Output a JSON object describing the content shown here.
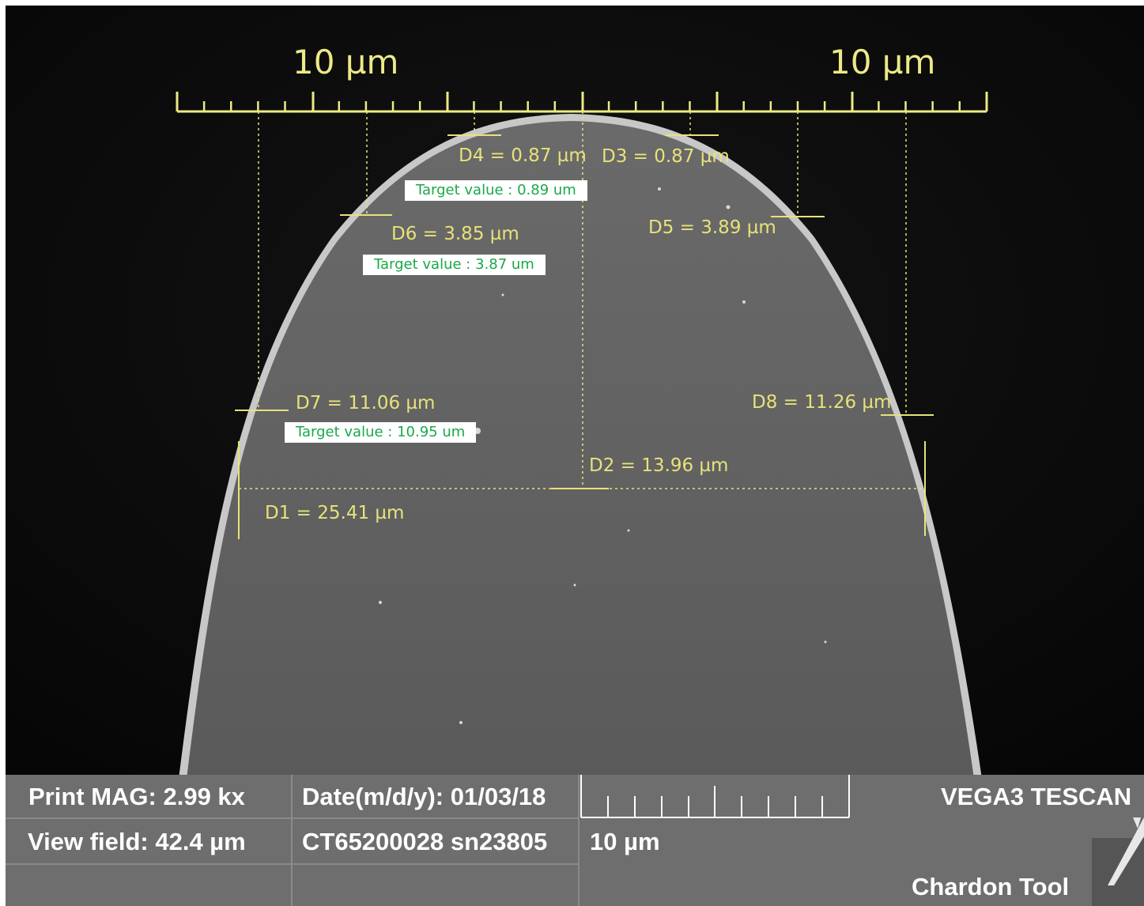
{
  "scale_bar_top": {
    "label_left": "10 µm",
    "label_right": "10 µm"
  },
  "measurements": {
    "d1": "D1 = 25.41 µm",
    "d2": "D2 = 13.96 µm",
    "d3": "D3 = 0.87 µm",
    "d4": "D4 = 0.87 µm",
    "d5": "D5 = 3.89 µm",
    "d6": "D6 = 3.85 µm",
    "d7": "D7 = 11.06 µm",
    "d8": "D8 = 11.26 µm"
  },
  "targets": {
    "t1": "Target value :  0.89 um",
    "t2": "Target value :  3.87 um",
    "t3": "Target value :  10.95 um"
  },
  "info_bar": {
    "print_mag": "Print MAG: 2.99 kx",
    "view_field": "View field: 42.4 µm",
    "date": "Date(m/d/y): 01/03/18",
    "serial": "CT65200028 sn23805",
    "scale_label": "10 µm",
    "instrument": "VEGA3 TESCAN",
    "company": "Chardon Tool"
  },
  "colors": {
    "annotation": "#e8e27a",
    "target_text": "#1aa84a",
    "background": "#0b0b0b",
    "sample": "#616161",
    "info_bar": "#6e6e6e"
  }
}
